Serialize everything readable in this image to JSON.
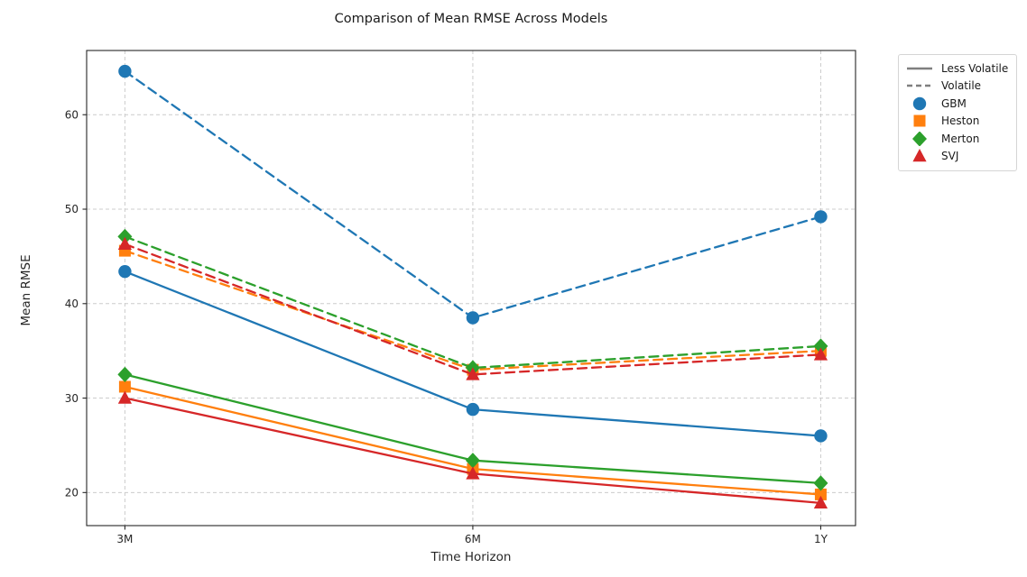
{
  "chart_data": {
    "type": "line",
    "title": "Comparison of Mean RMSE Across Models",
    "xlabel": "Time Horizon",
    "ylabel": "Mean RMSE",
    "categories": [
      "3M",
      "6M",
      "1Y"
    ],
    "y_ticks": [
      20,
      30,
      40,
      50,
      60
    ],
    "ylim": [
      16.5,
      66.8
    ],
    "grid": true,
    "grid_style": "dashed",
    "legend_position": "outside-top-right",
    "line_styles": [
      {
        "name": "Less Volatile",
        "dash": "solid",
        "color": "#7f7f7f"
      },
      {
        "name": "Volatile",
        "dash": "dashed",
        "color": "#7f7f7f"
      }
    ],
    "models": [
      {
        "name": "GBM",
        "color": "#1f77b4",
        "marker": "circle"
      },
      {
        "name": "Heston",
        "color": "#ff7f0e",
        "marker": "square"
      },
      {
        "name": "Merton",
        "color": "#2ca02c",
        "marker": "diamond"
      },
      {
        "name": "SVJ",
        "color": "#d62728",
        "marker": "triangle"
      }
    ],
    "series": [
      {
        "model": "GBM",
        "volatility": "Less Volatile",
        "dash": "solid",
        "values": [
          43.4,
          28.8,
          26.0
        ]
      },
      {
        "model": "GBM",
        "volatility": "Volatile",
        "dash": "dashed",
        "values": [
          64.6,
          38.5,
          49.2
        ]
      },
      {
        "model": "Heston",
        "volatility": "Less Volatile",
        "dash": "solid",
        "values": [
          31.2,
          22.5,
          19.8
        ]
      },
      {
        "model": "Heston",
        "volatility": "Volatile",
        "dash": "dashed",
        "values": [
          45.6,
          33.0,
          35.0
        ]
      },
      {
        "model": "Merton",
        "volatility": "Less Volatile",
        "dash": "solid",
        "values": [
          32.5,
          23.4,
          21.0
        ]
      },
      {
        "model": "Merton",
        "volatility": "Volatile",
        "dash": "dashed",
        "values": [
          47.1,
          33.2,
          35.5
        ]
      },
      {
        "model": "SVJ",
        "volatility": "Less Volatile",
        "dash": "solid",
        "values": [
          30.0,
          22.0,
          18.9
        ]
      },
      {
        "model": "SVJ",
        "volatility": "Volatile",
        "dash": "dashed",
        "values": [
          46.3,
          32.5,
          34.6
        ]
      }
    ]
  }
}
